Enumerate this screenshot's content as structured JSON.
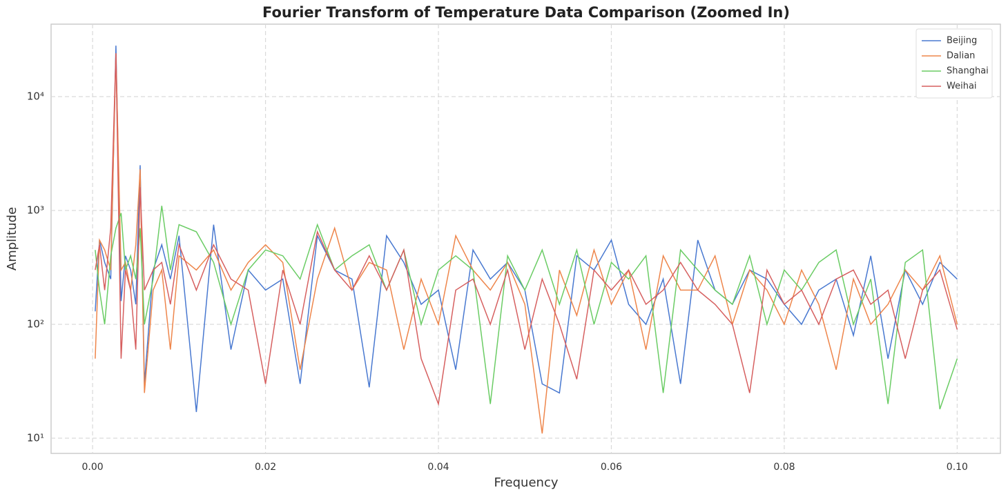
{
  "chart_data": {
    "type": "line",
    "title": "Fourier Transform of Temperature Data Comparison (Zoomed In)",
    "xlabel": "Frequency",
    "ylabel": "Amplitude",
    "x": [
      0.0003,
      0.0008,
      0.0014,
      0.0021,
      0.0027,
      0.0033,
      0.0038,
      0.0044,
      0.005,
      0.0055,
      0.006,
      0.007,
      0.008,
      0.009,
      0.01,
      0.012,
      0.014,
      0.016,
      0.018,
      0.02,
      0.022,
      0.024,
      0.026,
      0.028,
      0.03,
      0.032,
      0.034,
      0.036,
      0.038,
      0.04,
      0.042,
      0.044,
      0.046,
      0.048,
      0.05,
      0.052,
      0.054,
      0.056,
      0.058,
      0.06,
      0.062,
      0.064,
      0.066,
      0.068,
      0.07,
      0.072,
      0.074,
      0.076,
      0.078,
      0.08,
      0.082,
      0.084,
      0.086,
      0.088,
      0.09,
      0.092,
      0.094,
      0.096,
      0.098,
      0.1
    ],
    "series": [
      {
        "name": "Beijing",
        "color": "#4878d0",
        "values": [
          130,
          550,
          350,
          250,
          28000,
          160,
          400,
          300,
          150,
          2500,
          30,
          300,
          500,
          250,
          600,
          17,
          750,
          60,
          300,
          200,
          250,
          30,
          600,
          300,
          250,
          28,
          600,
          350,
          150,
          200,
          40,
          450,
          250,
          350,
          200,
          30,
          25,
          400,
          300,
          550,
          150,
          100,
          250,
          30,
          550,
          200,
          150,
          300,
          250,
          150,
          100,
          200,
          250,
          80,
          400,
          50,
          300,
          150,
          350,
          250
        ]
      },
      {
        "name": "Dalian",
        "color": "#ee854a",
        "values": [
          50,
          550,
          450,
          300,
          24000,
          300,
          350,
          200,
          500,
          2300,
          25,
          200,
          300,
          60,
          400,
          300,
          450,
          200,
          350,
          500,
          350,
          40,
          250,
          700,
          200,
          350,
          300,
          60,
          250,
          100,
          600,
          300,
          200,
          350,
          150,
          11,
          300,
          120,
          450,
          150,
          300,
          60,
          400,
          200,
          200,
          400,
          100,
          300,
          200,
          100,
          300,
          150,
          40,
          250,
          100,
          150,
          300,
          200,
          400,
          100
        ]
      },
      {
        "name": "Shanghai",
        "color": "#6acc64",
        "values": [
          450,
          200,
          100,
          400,
          700,
          950,
          300,
          400,
          250,
          700,
          100,
          250,
          1100,
          300,
          750,
          650,
          350,
          100,
          300,
          450,
          400,
          250,
          750,
          300,
          400,
          500,
          200,
          450,
          100,
          300,
          400,
          300,
          20,
          400,
          200,
          450,
          150,
          450,
          100,
          350,
          250,
          400,
          25,
          450,
          300,
          200,
          150,
          400,
          100,
          300,
          200,
          350,
          450,
          100,
          250,
          20,
          350,
          450,
          18,
          50
        ]
      },
      {
        "name": "Weihai",
        "color": "#d65f5f",
        "values": [
          300,
          500,
          200,
          700,
          24000,
          50,
          300,
          200,
          60,
          1600,
          200,
          300,
          350,
          150,
          500,
          200,
          500,
          250,
          200,
          30,
          300,
          100,
          650,
          300,
          200,
          400,
          200,
          450,
          50,
          20,
          200,
          250,
          100,
          300,
          60,
          250,
          100,
          33,
          300,
          200,
          300,
          150,
          200,
          350,
          200,
          150,
          100,
          25,
          300,
          150,
          200,
          100,
          250,
          300,
          150,
          200,
          50,
          200,
          300,
          90
        ]
      }
    ],
    "xlim": [
      -0.0048,
      0.105
    ],
    "xticks": [
      {
        "value": 0,
        "label": "0.00"
      },
      {
        "value": 0.02,
        "label": "0.02"
      },
      {
        "value": 0.04,
        "label": "0.04"
      },
      {
        "value": 0.06,
        "label": "0.06"
      },
      {
        "value": 0.08,
        "label": "0.08"
      },
      {
        "value": 0.1,
        "label": "0.10"
      }
    ],
    "ylim": [
      7.36,
      43300
    ],
    "log_y": true,
    "yticks": [
      {
        "value": 10,
        "label": "10¹"
      },
      {
        "value": 100,
        "label": "10²"
      },
      {
        "value": 1000,
        "label": "10³"
      },
      {
        "value": 10000,
        "label": "10⁴"
      }
    ],
    "grid": true,
    "legend": "upper right"
  }
}
